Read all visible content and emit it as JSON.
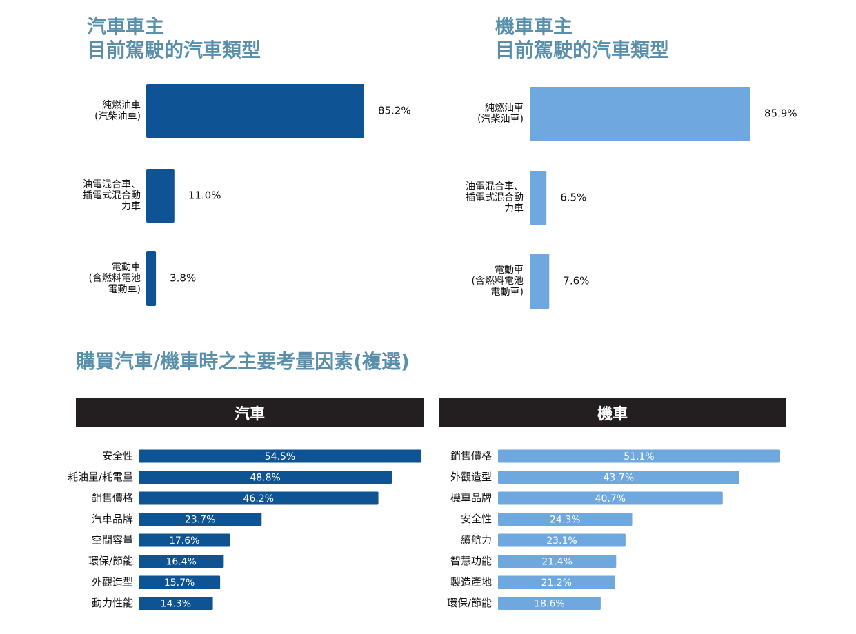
{
  "chart_data": [
    {
      "type": "bar",
      "orientation": "horizontal",
      "title": "汽車車主\n目前駕駛的汽車類型",
      "categories": [
        "純燃油車\n(汽柴油車)",
        "油電混合車、\n插電式混合動\n力車",
        "電動車\n(含燃料電池\n電動車)"
      ],
      "values": [
        85.2,
        11.0,
        3.8
      ],
      "value_labels": [
        "85.2%",
        "11.0%",
        "3.8%"
      ],
      "color": "#0e5394",
      "xlim": [
        0,
        100
      ]
    },
    {
      "type": "bar",
      "orientation": "horizontal",
      "title": "機車車主\n目前駕駛的汽車類型",
      "categories": [
        "純燃油車\n(汽柴油車)",
        "油電混合車、\n插電式混合動\n力車",
        "電動車\n(含燃料電池\n電動車)"
      ],
      "values": [
        85.9,
        6.5,
        7.6
      ],
      "value_labels": [
        "85.9%",
        "6.5%",
        "7.6%"
      ],
      "color": "#6ea8de",
      "xlim": [
        0,
        100
      ]
    },
    {
      "type": "bar",
      "orientation": "horizontal",
      "section_title": "購買汽車/機車時之主要考量因素(複選)",
      "title": "汽車",
      "categories": [
        "安全性",
        "耗油量/耗電量",
        "銷售價格",
        "汽車品牌",
        "空間容量",
        "環保/節能",
        "外觀造型",
        "動力性能"
      ],
      "values": [
        54.5,
        48.8,
        46.2,
        23.7,
        17.6,
        16.4,
        15.7,
        14.3
      ],
      "value_labels": [
        "54.5%",
        "48.8%",
        "46.2%",
        "23.7%",
        "17.6%",
        "16.4%",
        "15.7%",
        "14.3%"
      ],
      "color": "#0e5394",
      "xlim": [
        0,
        54.5
      ]
    },
    {
      "type": "bar",
      "orientation": "horizontal",
      "title": "機車",
      "categories": [
        "銷售價格",
        "外觀造型",
        "機車品牌",
        "安全性",
        "續航力",
        "智慧功能",
        "製造產地",
        "環保/節能"
      ],
      "values": [
        51.1,
        43.7,
        40.7,
        24.3,
        23.1,
        21.4,
        21.2,
        18.6
      ],
      "value_labels": [
        "51.1%",
        "43.7%",
        "40.7%",
        "24.3%",
        "23.1%",
        "21.4%",
        "21.2%",
        "18.6%"
      ],
      "color": "#6ea8de",
      "xlim": [
        0,
        51.1
      ]
    }
  ]
}
